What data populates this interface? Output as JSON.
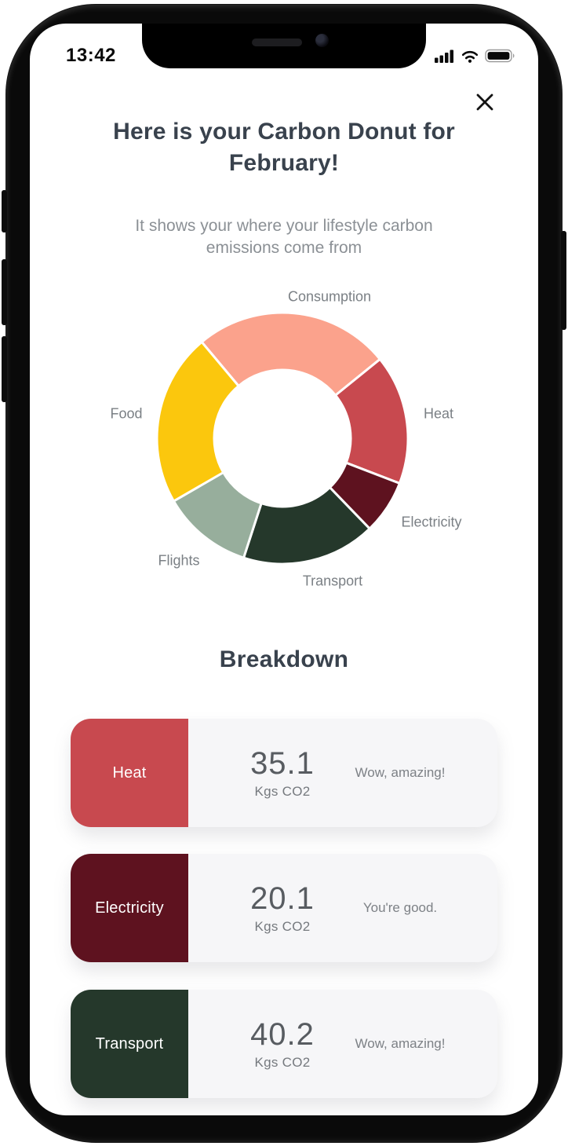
{
  "status_bar": {
    "time": "13:42",
    "icons": [
      {
        "name": "cellular-signal"
      },
      {
        "name": "wifi"
      },
      {
        "name": "battery"
      }
    ]
  },
  "header": {
    "title": "Here is your Carbon Donut for February!",
    "subtitle": "It shows your where your lifestyle carbon emissions come from"
  },
  "chart_data": {
    "type": "donut",
    "title": "Carbon Donut for February",
    "legend_position": "around",
    "outer_radius_px": 160,
    "inner_radius_px": 87,
    "angle_convention": "degrees clockwise from 12 o'clock",
    "segments": [
      {
        "label": "Consumption",
        "color": "#FBA28C",
        "start_deg": -40,
        "end_deg": 51,
        "arc_deg": 91
      },
      {
        "label": "Heat",
        "color": "#C8494F",
        "start_deg": 51,
        "end_deg": 111,
        "arc_deg": 60
      },
      {
        "label": "Electricity",
        "color": "#5E121F",
        "start_deg": 111,
        "end_deg": 136,
        "arc_deg": 25
      },
      {
        "label": "Transport",
        "color": "#25382B",
        "start_deg": 136,
        "end_deg": 198,
        "arc_deg": 62
      },
      {
        "label": "Flights",
        "color": "#97AE9C",
        "start_deg": 198,
        "end_deg": 240,
        "arc_deg": 42
      },
      {
        "label": "Food",
        "color": "#FBC70D",
        "start_deg": 240,
        "end_deg": 320,
        "arc_deg": 80
      }
    ]
  },
  "breakdown": {
    "heading": "Breakdown",
    "cards": [
      {
        "category": "Heat",
        "color": "#C8494F",
        "value": "35.1",
        "unit": "Kgs CO2",
        "comment": "Wow, amazing!"
      },
      {
        "category": "Electricity",
        "color": "#5E121F",
        "value": "20.1",
        "unit": "Kgs CO2",
        "comment": "You're good."
      },
      {
        "category": "Transport",
        "color": "#25382B",
        "value": "40.2",
        "unit": "Kgs CO2",
        "comment": "Wow, amazing!"
      }
    ]
  }
}
